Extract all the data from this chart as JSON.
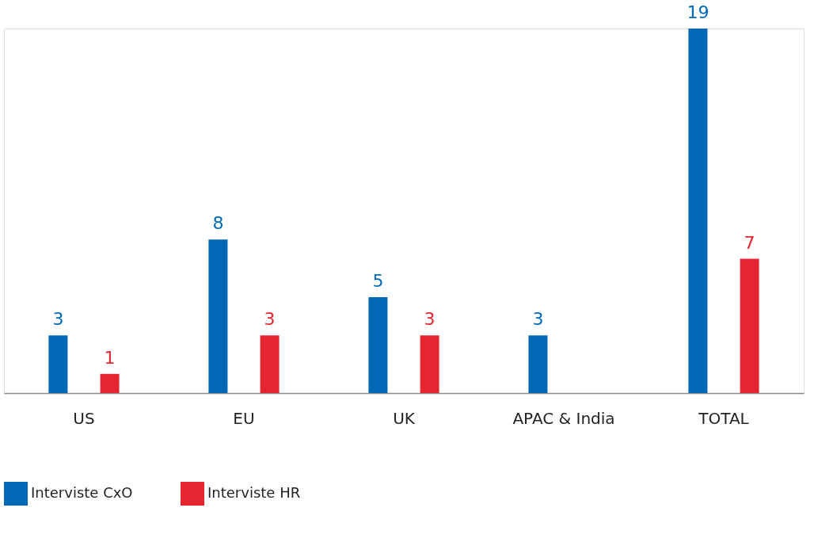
{
  "chart_data": {
    "type": "bar",
    "categories": [
      "US",
      "EU",
      "UK",
      "APAC & India",
      "TOTAL"
    ],
    "series": [
      {
        "name": "Interviste CxO",
        "color": "#0068b4",
        "values": [
          3,
          8,
          5,
          3,
          19
        ]
      },
      {
        "name": "Interviste HR",
        "color": "#e52530",
        "values": [
          1,
          3,
          3,
          null,
          7
        ]
      }
    ],
    "data_labels": true,
    "legend": "bottom",
    "grid": false,
    "tick_labels": "x"
  }
}
